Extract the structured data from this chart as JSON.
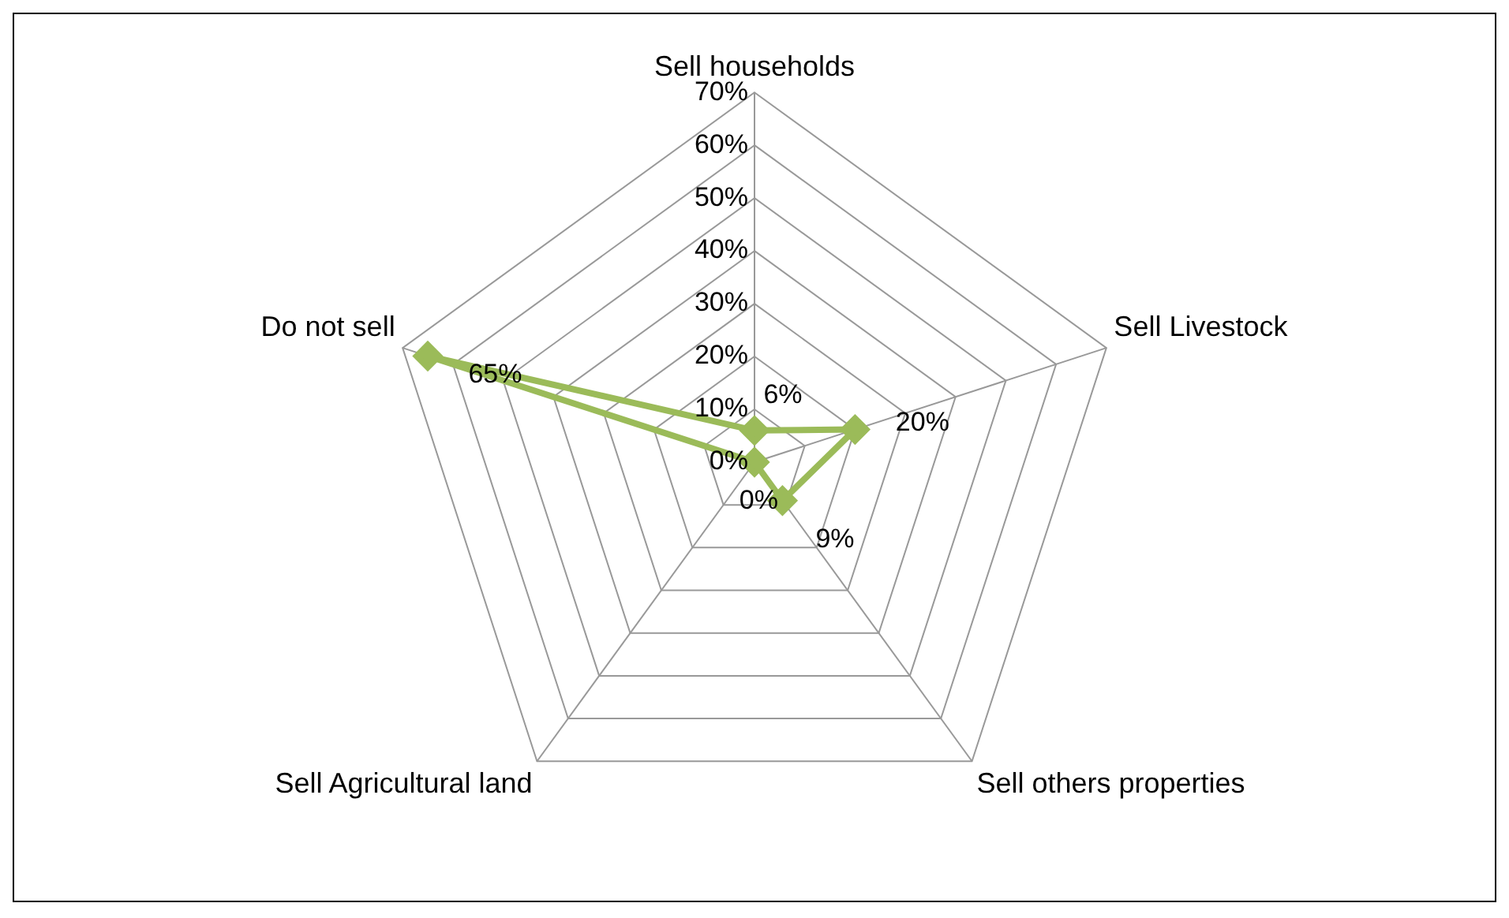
{
  "chart_data": {
    "type": "radar",
    "categories": [
      "Sell households",
      "Sell Livestock",
      "Sell others properties",
      "Sell Agricultural land",
      "Do not sell"
    ],
    "series": [
      {
        "color": "#9bbb59",
        "values": [
          6,
          20,
          9,
          0,
          65
        ],
        "value_labels": [
          "6%",
          "20%",
          "9%",
          "0%",
          "65%"
        ]
      }
    ],
    "ylim": [
      0,
      70
    ],
    "yticks": [
      {
        "value": 0,
        "label": "0%"
      },
      {
        "value": 10,
        "label": "10%"
      },
      {
        "value": 20,
        "label": "20%"
      },
      {
        "value": 30,
        "label": "30%"
      },
      {
        "value": 40,
        "label": "40%"
      },
      {
        "value": 50,
        "label": "50%"
      },
      {
        "value": 60,
        "label": "60%"
      },
      {
        "value": 70,
        "label": "70%"
      }
    ],
    "grid": true,
    "marker": "diamond",
    "legend": false
  }
}
